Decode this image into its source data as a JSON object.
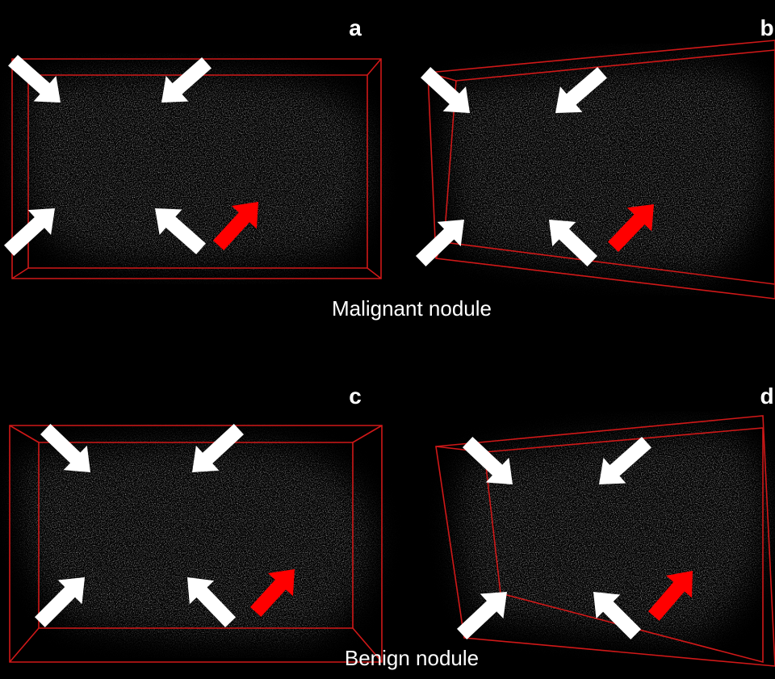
{
  "panels": [
    {
      "label": "a"
    },
    {
      "label": "b"
    },
    {
      "label": "c"
    },
    {
      "label": "d"
    }
  ],
  "captions": {
    "top": "Malignant nodule",
    "bottom": "Benign nodule"
  }
}
